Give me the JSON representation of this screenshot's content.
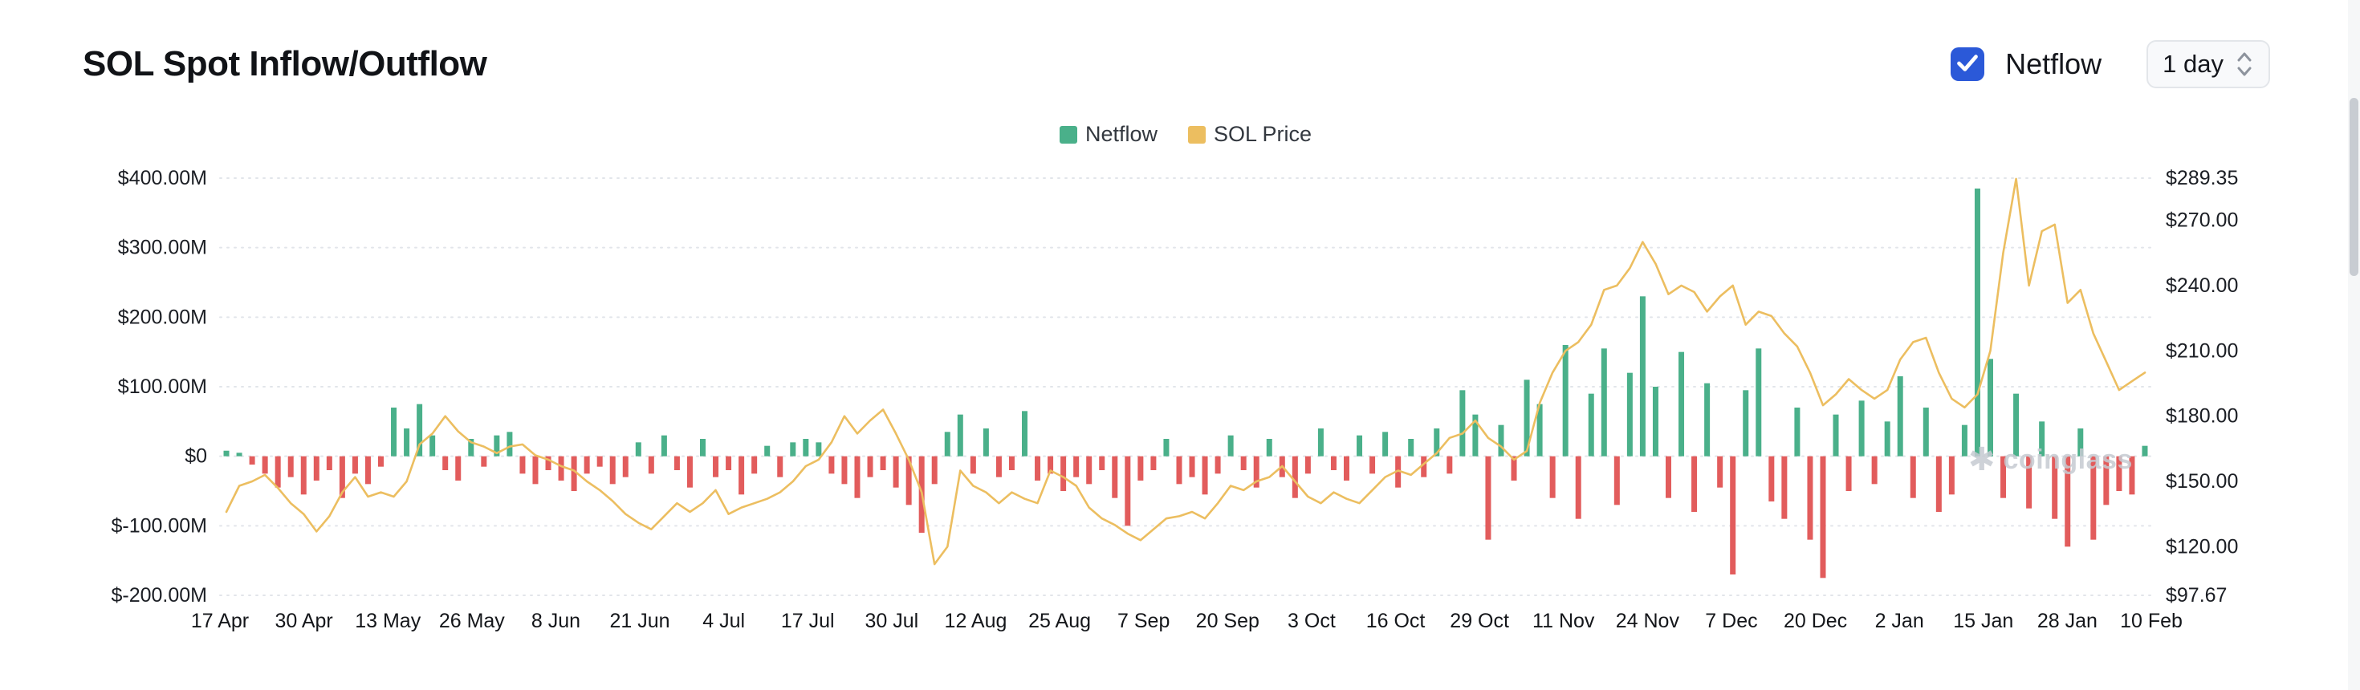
{
  "header": {
    "title": "SOL Spot Inflow/Outflow",
    "netflow_toggle": {
      "label": "Netflow",
      "checked": true
    },
    "interval_select": {
      "value": "1 day"
    }
  },
  "legend": [
    {
      "label": "Netflow",
      "color": "#4ab08a"
    },
    {
      "label": "SOL Price",
      "color": "#ecbe60"
    }
  ],
  "watermark": {
    "text": "coinglass"
  },
  "colors": {
    "netflow_positive": "#4ab08a",
    "netflow_negative": "#e25c5c",
    "price_line": "#ecbe60",
    "checkbox_blue": "#2b59d8",
    "grid": "#e2e5ea",
    "axis_text": "#1b1e24"
  },
  "chart_data": {
    "type": "bar",
    "title": "SOL Spot Inflow/Outflow",
    "x_tick_labels": [
      "17 Apr",
      "30 Apr",
      "13 May",
      "26 May",
      "8 Jun",
      "21 Jun",
      "4 Jul",
      "17 Jul",
      "30 Jul",
      "12 Aug",
      "25 Aug",
      "7 Sep",
      "20 Sep",
      "3 Oct",
      "16 Oct",
      "29 Oct",
      "11 Nov",
      "24 Nov",
      "7 Dec",
      "20 Dec",
      "2 Jan",
      "15 Jan",
      "28 Jan",
      "10 Feb"
    ],
    "left_axis": {
      "unit": "USD millions",
      "min": -200,
      "max": 400,
      "tick_values": [
        400,
        300,
        200,
        100,
        0,
        -100,
        -200
      ],
      "tick_labels": [
        "$400.00M",
        "$300.00M",
        "$200.00M",
        "$100.00M",
        "$0",
        "$-100.00M",
        "$-200.00M"
      ]
    },
    "right_axis": {
      "unit": "USD",
      "min": 97.67,
      "max": 289.35,
      "tick_values": [
        289.35,
        270,
        240,
        210,
        180,
        150,
        120,
        97.67
      ],
      "tick_labels": [
        "$289.35",
        "$270.00",
        "$240.00",
        "$210.00",
        "$180.00",
        "$150.00",
        "$120.00",
        "$97.67"
      ]
    },
    "grid": "horizontal-dotted",
    "legend_position": "top-center",
    "series": [
      {
        "name": "Netflow",
        "type": "bar",
        "axis": "left",
        "unit": "USD millions",
        "positive_color": "#4ab08a",
        "negative_color": "#e25c5c",
        "values": [
          8,
          5,
          -12,
          -25,
          -45,
          -30,
          -55,
          -35,
          -20,
          -60,
          -25,
          -40,
          -15,
          70,
          40,
          75,
          30,
          -20,
          -35,
          25,
          -15,
          30,
          35,
          -25,
          -40,
          -20,
          -35,
          -50,
          -25,
          -15,
          -40,
          -30,
          20,
          -25,
          30,
          -20,
          -45,
          25,
          -30,
          -20,
          -55,
          -25,
          15,
          -30,
          20,
          25,
          20,
          -25,
          -40,
          -60,
          -30,
          -20,
          -45,
          -70,
          -110,
          -40,
          35,
          60,
          -25,
          40,
          -30,
          -20,
          65,
          -35,
          -25,
          -50,
          -30,
          -40,
          -20,
          -60,
          -100,
          -35,
          -20,
          25,
          -40,
          -30,
          -55,
          -25,
          30,
          -20,
          -45,
          25,
          -30,
          -60,
          -25,
          40,
          -20,
          -35,
          30,
          -25,
          35,
          -45,
          25,
          -30,
          40,
          -25,
          95,
          60,
          -120,
          45,
          -35,
          110,
          75,
          -60,
          160,
          -90,
          90,
          155,
          -70,
          120,
          230,
          100,
          -60,
          150,
          -80,
          105,
          -45,
          -170,
          95,
          155,
          -65,
          -90,
          70,
          -120,
          -175,
          60,
          -50,
          80,
          -40,
          50,
          115,
          -60,
          70,
          -80,
          -55,
          45,
          385,
          140,
          -60,
          90,
          -75,
          50,
          -90,
          -130,
          40,
          -120,
          -70,
          -50,
          -55,
          15
        ]
      },
      {
        "name": "SOL Price",
        "type": "line",
        "axis": "right",
        "unit": "USD",
        "color": "#ecbe60",
        "values": [
          136,
          148,
          150,
          153,
          147,
          140,
          135,
          127,
          134,
          145,
          152,
          143,
          145,
          143,
          150,
          167,
          172,
          180,
          173,
          168,
          166,
          163,
          166,
          167,
          162,
          160,
          157,
          155,
          150,
          146,
          141,
          135,
          131,
          128,
          134,
          140,
          136,
          140,
          146,
          135,
          138,
          140,
          142,
          145,
          150,
          157,
          160,
          168,
          180,
          172,
          178,
          183,
          172,
          160,
          145,
          112,
          120,
          155,
          148,
          145,
          140,
          145,
          142,
          140,
          155,
          152,
          148,
          138,
          133,
          130,
          126,
          123,
          128,
          133,
          134,
          136,
          133,
          140,
          148,
          146,
          150,
          152,
          157,
          150,
          143,
          140,
          145,
          142,
          140,
          146,
          152,
          155,
          153,
          158,
          163,
          170,
          172,
          178,
          170,
          166,
          160,
          164,
          186,
          200,
          210,
          214,
          222,
          238,
          240,
          248,
          260,
          250,
          236,
          240,
          237,
          228,
          235,
          240,
          222,
          228,
          226,
          218,
          212,
          200,
          185,
          190,
          197,
          192,
          188,
          192,
          206,
          214,
          216,
          200,
          188,
          184,
          190,
          210,
          255,
          289,
          240,
          265,
          268,
          232,
          238,
          218,
          205,
          192,
          196,
          200
        ]
      }
    ]
  }
}
